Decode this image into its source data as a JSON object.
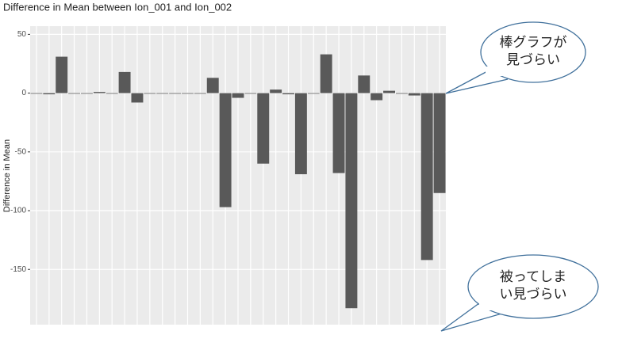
{
  "chart_data": {
    "type": "bar",
    "title": "Difference in Mean between Ion_001 and Ion_002",
    "y_label": "Difference in Mean",
    "categories": [
      null,
      null,
      null,
      null,
      null,
      null,
      null,
      null,
      null,
      null,
      null,
      null,
      null,
      null,
      null,
      null,
      null,
      null,
      null,
      null,
      null,
      null,
      null,
      null,
      null,
      null,
      null,
      null,
      null,
      null,
      null,
      null,
      null
    ],
    "values": [
      0,
      -1,
      31,
      0,
      0,
      1,
      0,
      18,
      -8,
      0,
      0,
      0,
      0,
      -0.5,
      13,
      -97,
      -4,
      0,
      -60,
      3,
      -1,
      -69,
      0,
      33,
      -68,
      -183,
      15,
      -6,
      2,
      0,
      -2,
      -142,
      -85
    ],
    "color": "#595959",
    "ylim": [
      -197,
      57
    ],
    "yticks": [
      -150,
      -100,
      -50,
      0,
      50
    ],
    "grid": true
  },
  "callouts": [
    "棒グラフが\n見づらい",
    "被ってしま\nい見づらい"
  ]
}
